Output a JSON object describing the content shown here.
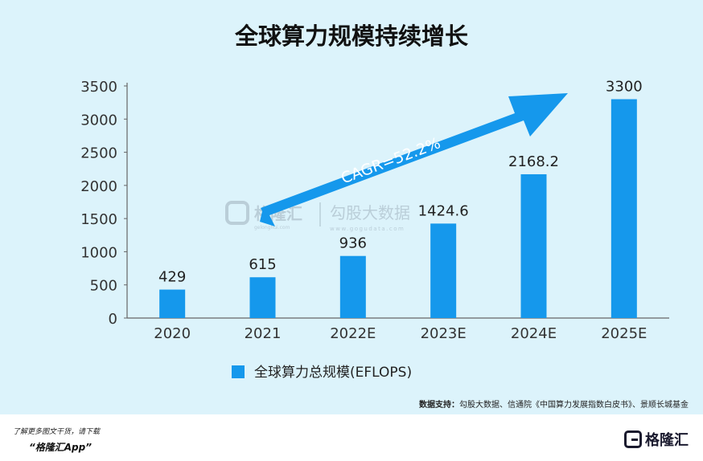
{
  "title": "全球算力规模持续增长",
  "chart_data": {
    "type": "bar",
    "categories": [
      "2020",
      "2021",
      "2022E",
      "2023E",
      "2024E",
      "2025E"
    ],
    "series": [
      {
        "name": "全球算力总规模(EFLOPS)",
        "values": [
          429,
          615,
          936,
          1424.6,
          2168.2,
          3300
        ]
      }
    ],
    "value_labels": [
      "429",
      "615",
      "936",
      "1424.6",
      "2168.2",
      "3300"
    ],
    "yticks": [
      "0",
      "500",
      "1000",
      "1500",
      "2000",
      "2500",
      "3000",
      "3500"
    ],
    "ylim": [
      0,
      3500
    ],
    "annotation": "CAGR=52.2%",
    "legend_position": "bottom",
    "bar_color": "#1598ec",
    "arrow_color": "#1598ec"
  },
  "watermark": {
    "brand": "格隆汇",
    "site": "gelonghui.com",
    "partner": "勾股大数据",
    "partner_site": "www.gogudata.com"
  },
  "source": {
    "label": "数据支持：",
    "text": "勾股大数据、信通院《中国算力发展指数白皮书》、景顺长城基金"
  },
  "footer": {
    "line1": "了解更多图文干货，请下载",
    "line2": "“格隆汇App”",
    "logo_text": "格隆汇"
  }
}
